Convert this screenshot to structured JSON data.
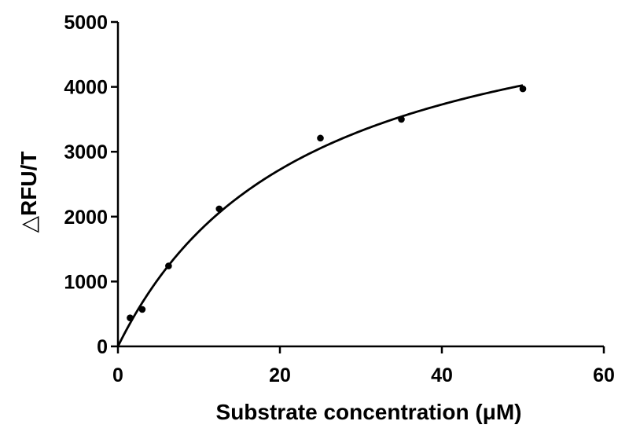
{
  "chart_data": {
    "type": "scatter",
    "xlabel": "Substrate concentration (μM)",
    "ylabel": "△RFU/T",
    "xlim": [
      0,
      60
    ],
    "ylim": [
      0,
      5000
    ],
    "x_ticks": [
      0,
      20,
      40,
      60
    ],
    "y_ticks": [
      0,
      1000,
      2000,
      3000,
      4000,
      5000
    ],
    "x_tick_labels": [
      "0",
      "20",
      "40",
      "60"
    ],
    "y_tick_labels": [
      "0",
      "1000",
      "2000",
      "3000",
      "4000",
      "5000"
    ],
    "grid": false,
    "legend": "none",
    "series": [
      {
        "kind": "points",
        "x": [
          1.5,
          3.0,
          6.25,
          12.5,
          25,
          35,
          50
        ],
        "y": [
          440,
          570,
          1240,
          2120,
          3210,
          3500,
          3970
        ]
      },
      {
        "kind": "fit-curve",
        "model": "michaelis-menten",
        "vmax": 5900,
        "km": 23.3,
        "x_range": [
          0,
          50
        ]
      }
    ]
  }
}
